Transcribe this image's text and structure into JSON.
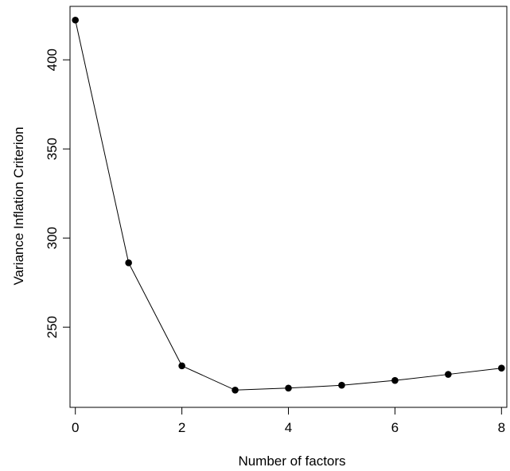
{
  "chart_data": {
    "type": "line",
    "title": "",
    "xlabel": "Number of factors",
    "ylabel": "Variance Inflation Criterion",
    "xlim": [
      -0.1,
      8.1
    ],
    "ylim": [
      205,
      430
    ],
    "x_ticks": [
      0,
      2,
      4,
      6,
      8
    ],
    "y_ticks": [
      250,
      300,
      350,
      400
    ],
    "grid": false,
    "legend": "none",
    "series": [
      {
        "x": [
          0,
          1,
          2,
          3,
          4,
          5,
          6,
          7,
          8
        ],
        "values": [
          422.3,
          286.1,
          228.3,
          214.7,
          215.8,
          217.4,
          220.1,
          223.5,
          227.0
        ]
      }
    ],
    "colors": {
      "line": "#000000",
      "marker": "#000000",
      "axis": "#000000"
    }
  }
}
